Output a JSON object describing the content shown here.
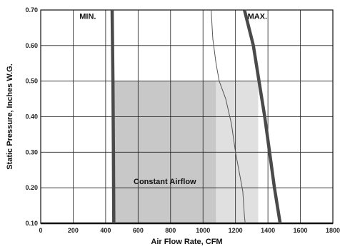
{
  "chart_data": {
    "type": "line",
    "xlabel": "Air Flow Rate, CFM",
    "ylabel": "Static Pressure, Inches W.G.",
    "xlim": [
      0,
      1800
    ],
    "ylim": [
      0.1,
      0.7
    ],
    "x_ticks": [
      "0",
      "200",
      "400",
      "600",
      "800",
      "1000",
      "1200",
      "1400",
      "1600",
      "1800"
    ],
    "y_ticks": [
      "0.10",
      "0.20",
      "0.30",
      "0.40",
      "0.50",
      "0.60",
      "0.70"
    ],
    "grid": true,
    "regions": [
      {
        "name": "Constant Airflow",
        "x": [
          450,
          1080
        ],
        "y": [
          0.1,
          0.5
        ],
        "color": "#c8c8c8"
      },
      {
        "name": "",
        "x": [
          1080,
          1340
        ],
        "y": [
          0.1,
          0.5
        ],
        "color": "#e0e0e0"
      }
    ],
    "series": [
      {
        "name": "MIN.",
        "style": "thick",
        "points": [
          [
            440,
            0.7
          ],
          [
            445,
            0.5
          ],
          [
            448,
            0.3
          ],
          [
            450,
            0.1
          ]
        ]
      },
      {
        "name": "MAX.",
        "style": "thick",
        "points": [
          [
            1255,
            0.7
          ],
          [
            1310,
            0.6
          ],
          [
            1345,
            0.5
          ],
          [
            1380,
            0.4
          ],
          [
            1410,
            0.3
          ],
          [
            1440,
            0.2
          ],
          [
            1475,
            0.1
          ]
        ]
      },
      {
        "name": "",
        "style": "thin",
        "points": [
          [
            1050,
            0.7
          ],
          [
            1060,
            0.62
          ],
          [
            1080,
            0.55
          ],
          [
            1100,
            0.5
          ],
          [
            1140,
            0.45
          ],
          [
            1175,
            0.38
          ],
          [
            1200,
            0.3
          ],
          [
            1225,
            0.24
          ],
          [
            1245,
            0.19
          ],
          [
            1255,
            0.12
          ],
          [
            1260,
            0.1
          ]
        ]
      }
    ],
    "annotations": [
      {
        "text": "MIN.",
        "x": 290,
        "y": 0.675
      },
      {
        "text": "MAX.",
        "x": 1335,
        "y": 0.675
      },
      {
        "text": "Constant Airflow",
        "x": 765,
        "y": 0.21
      }
    ],
    "colors": {
      "thick": "#4a4a4a",
      "thin": "#555555",
      "grid": "#222222"
    }
  }
}
